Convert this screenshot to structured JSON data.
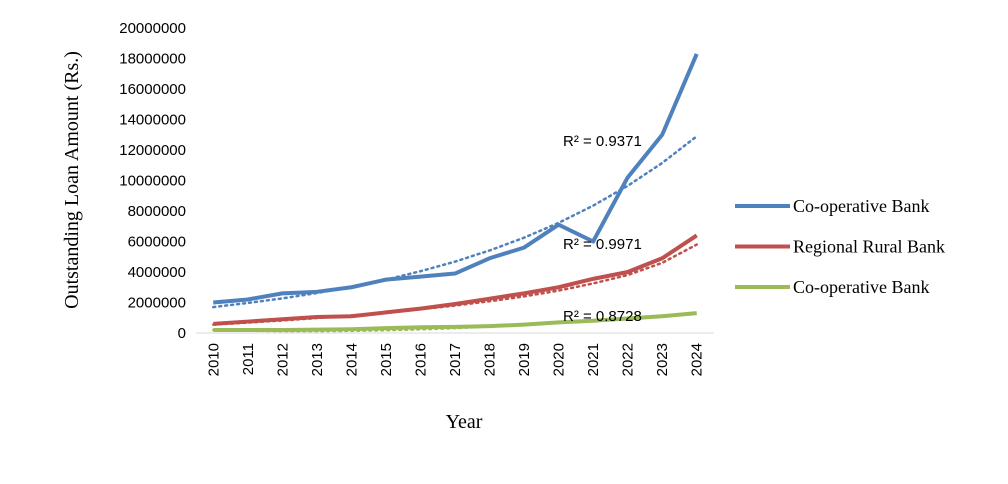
{
  "chart_data": {
    "type": "line",
    "x_label": "Year",
    "y_label": "Outstanding Loan Amount (Rs.)",
    "categories": [
      "2010",
      "2011",
      "2012",
      "2013",
      "2014",
      "2015",
      "2016",
      "2017",
      "2018",
      "2019",
      "2020",
      "2021",
      "2022",
      "2023",
      "2024"
    ],
    "ylim": [
      0,
      20000000
    ],
    "yticks": [
      0,
      2000000,
      4000000,
      6000000,
      8000000,
      10000000,
      12000000,
      14000000,
      16000000,
      18000000,
      20000000
    ],
    "grid": false,
    "legend": "right",
    "series": [
      {
        "name": "Co-operative Bank",
        "color": "#4f81bd",
        "values": [
          2000000,
          2200000,
          2600000,
          2700000,
          3000000,
          3500000,
          3700000,
          3900000,
          4900000,
          5600000,
          7100000,
          6000000,
          10200000,
          13000000,
          18300000
        ]
      },
      {
        "name": "Regional Rural Bank",
        "color": "#c0504d",
        "values": [
          600000,
          750000,
          900000,
          1050000,
          1100000,
          1350000,
          1600000,
          1900000,
          2250000,
          2600000,
          3000000,
          3550000,
          4000000,
          4900000,
          6400000
        ]
      },
      {
        "name": "Co-operative Bank",
        "color": "#9bbb59",
        "values": [
          200000,
          200000,
          200000,
          220000,
          250000,
          320000,
          380000,
          400000,
          450000,
          550000,
          700000,
          800000,
          950000,
          1100000,
          1300000
        ]
      }
    ],
    "trendlines": [
      {
        "label": "R² = 0.9371",
        "values": [
          1700000,
          1970000,
          2270000,
          2620000,
          3030000,
          3500000,
          4050000,
          4680000,
          5410000,
          6250000,
          7220000,
          8350000,
          9650000,
          11150000,
          12900000
        ]
      },
      {
        "label": "R² = 0.9971",
        "values": [
          550000,
          680000,
          820000,
          980000,
          1150000,
          1340000,
          1560000,
          1800000,
          2080000,
          2400000,
          2780000,
          3250000,
          3800000,
          4600000,
          5800000
        ]
      },
      {
        "label": "R² = 0.8728",
        "values": [
          200000,
          150000,
          120000,
          120000,
          140000,
          180000,
          240000,
          320000,
          420000,
          540000,
          680000,
          840000,
          1000000,
          1150000,
          1300000
        ]
      }
    ]
  }
}
